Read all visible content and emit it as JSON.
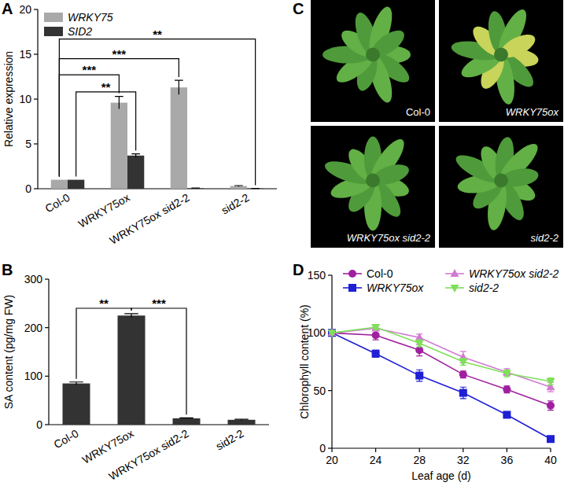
{
  "chart_data": [
    {
      "type": "bar",
      "title": "A",
      "y_label": "Relative expression",
      "categories": [
        "Col-0",
        "WRKY75ox",
        "WRKY75ox sid2-2",
        "sid2-2"
      ],
      "series": [
        {
          "name": "WRKY75",
          "color": "#a9a9a9",
          "values": [
            1,
            9.6,
            11.3,
            0.3
          ],
          "errors": [
            0,
            0.7,
            0.8,
            0.05
          ]
        },
        {
          "name": "SID2",
          "color": "#333333",
          "values": [
            1,
            3.7,
            0.05,
            0.03
          ],
          "errors": [
            0,
            0.2,
            0.02,
            0.01
          ]
        }
      ],
      "ylim": [
        0,
        20
      ],
      "yticks": [
        0,
        5,
        10,
        15,
        20
      ],
      "legend": "top-left",
      "annotations": [
        {
          "text": "**",
          "from": [
            0,
            1
          ],
          "to": [
            1,
            1
          ],
          "y": 10.8
        },
        {
          "text": "***",
          "from": [
            0,
            0
          ],
          "to": [
            1,
            0
          ],
          "y": 12.7
        },
        {
          "text": "***",
          "from": [
            0,
            0
          ],
          "to": [
            2,
            0
          ],
          "y": 14.5
        },
        {
          "text": "**",
          "from": [
            0,
            0
          ],
          "to": [
            3,
            1
          ],
          "y": 16.7
        }
      ]
    },
    {
      "type": "bar",
      "title": "B",
      "y_label": "SA content (pg/mg FW)",
      "categories": [
        "Col-0",
        "WRKY75ox",
        "WRKY75ox sid2-2",
        "sid2-2"
      ],
      "series": [
        {
          "name": "SA",
          "color": "#333333",
          "values": [
            85,
            225,
            13,
            10
          ],
          "errors": [
            3,
            4,
            1,
            1
          ]
        }
      ],
      "ylim": [
        0,
        300
      ],
      "yticks": [
        0,
        100,
        200,
        300
      ],
      "annotations": [
        {
          "text": "**",
          "from": [
            0,
            0
          ],
          "to": [
            1,
            0
          ],
          "y": 240
        },
        {
          "text": "***",
          "from": [
            1,
            0
          ],
          "to": [
            2,
            0
          ],
          "y": 240
        }
      ]
    },
    {
      "type": "line",
      "title": "D",
      "x_label": "Leaf age (d)",
      "y_label": "Chlorophyll content (%)",
      "x": [
        20,
        24,
        28,
        32,
        36,
        40
      ],
      "series": [
        {
          "name": "Col-0",
          "color": "#a01fa0",
          "marker": "circle",
          "values": [
            100,
            98,
            85,
            64,
            51,
            37
          ],
          "errors": [
            0,
            4,
            5,
            3,
            3,
            4
          ]
        },
        {
          "name": "WRKY75ox",
          "color": "#1f1fd6",
          "marker": "square",
          "values": [
            100,
            82,
            63,
            48,
            29,
            8
          ],
          "errors": [
            0,
            3,
            5,
            5,
            2,
            2
          ]
        },
        {
          "name": "WRKY75ox sid2-2",
          "color": "#d27ad2",
          "marker": "triangle",
          "values": [
            100,
            104,
            96,
            79,
            66,
            53
          ],
          "errors": [
            0,
            2,
            3,
            5,
            3,
            4
          ]
        },
        {
          "name": "sid2-2",
          "color": "#7ee05a",
          "marker": "triangle-down",
          "values": [
            100,
            105,
            91,
            75,
            65,
            58
          ],
          "errors": [
            0,
            2,
            3,
            3,
            3,
            3
          ]
        }
      ],
      "xlim": [
        20,
        40
      ],
      "xticks": [
        20,
        24,
        28,
        32,
        36,
        40
      ],
      "ylim": [
        0,
        150
      ],
      "yticks": [
        0,
        50,
        100,
        150
      ],
      "legend": "top"
    }
  ],
  "panel_c": {
    "title": "C",
    "labels": [
      "Col-0",
      "WRKY75ox",
      "WRKY75ox sid2-2",
      "sid2-2"
    ]
  }
}
